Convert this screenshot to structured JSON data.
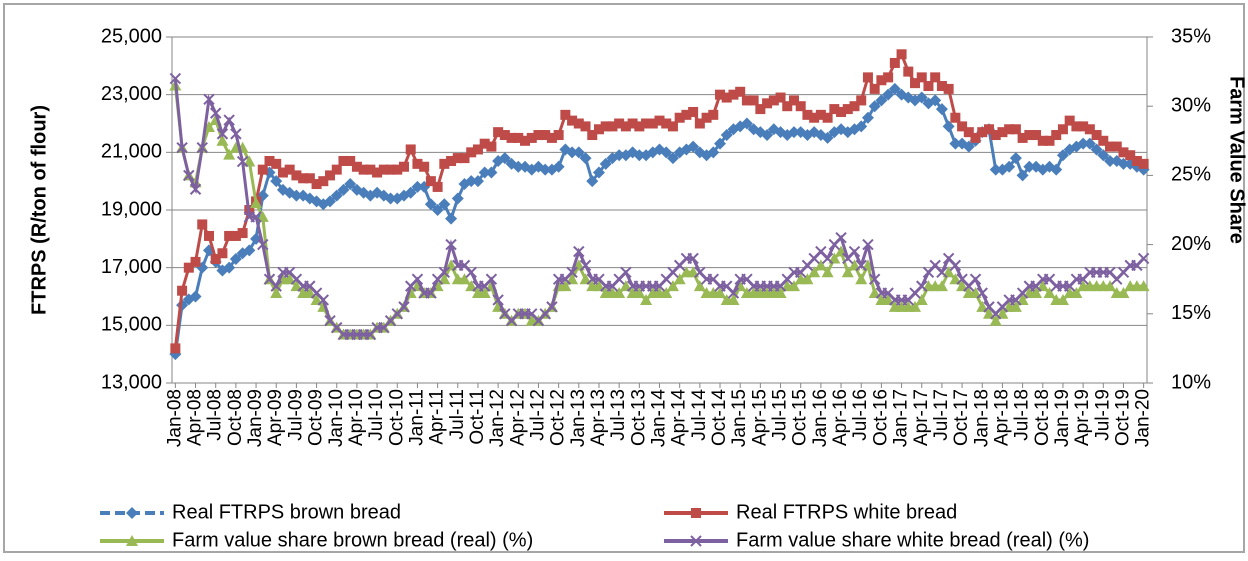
{
  "chart_data": {
    "type": "line",
    "y_label": "FTRPS (R/ton of flour)",
    "y2_label": "Farm Value Share",
    "categories": [
      "Jan-08",
      null,
      null,
      "Apr-08",
      null,
      null,
      "Jul-08",
      null,
      null,
      "Oct-08",
      null,
      null,
      "Jan-09",
      null,
      null,
      "Apr-09",
      null,
      null,
      "Jul-09",
      null,
      null,
      "Oct-09",
      null,
      null,
      "Jan-10",
      null,
      null,
      "Apr-10",
      null,
      null,
      "Jul-10",
      null,
      null,
      "Oct-10",
      null,
      null,
      "Jan-11",
      null,
      null,
      "Apr-11",
      null,
      null,
      "Jul-11",
      null,
      null,
      "Oct-11",
      null,
      null,
      "Jan-12",
      null,
      null,
      "Apr-12",
      null,
      null,
      "Jul-12",
      null,
      null,
      "Oct-12",
      null,
      null,
      "Jan-13",
      null,
      null,
      "Apr-13",
      null,
      null,
      "Jul-13",
      null,
      null,
      "Oct-13",
      null,
      null,
      "Jan-14",
      null,
      null,
      "Apr-14",
      null,
      null,
      "Jul-14",
      null,
      null,
      "Oct-14",
      null,
      null,
      "Jan-15",
      null,
      null,
      "Apr-15",
      null,
      null,
      "Jul-15",
      null,
      null,
      "Oct-15",
      null,
      null,
      "Jan-16",
      null,
      null,
      "Apr-16",
      null,
      null,
      "Jul-16",
      null,
      null,
      "Oct-16",
      null,
      null,
      "Jan-17",
      null,
      null,
      "Apr-17",
      null,
      null,
      "Jul-17",
      null,
      null,
      "Oct-17",
      null,
      null,
      "Jan-18",
      null,
      null,
      "Apr-18",
      null,
      null,
      "Jul-18",
      null,
      null,
      "Oct-18",
      null,
      null,
      "Jan-19",
      null,
      null,
      "Apr-19",
      null,
      null,
      "Jul-19",
      null,
      null,
      "Oct-19",
      null,
      null,
      "Jan-20"
    ],
    "ylim": [
      13000,
      25000
    ],
    "yticks": [
      {
        "value": 13000,
        "label": "13,000"
      },
      {
        "value": 15000,
        "label": "15,000"
      },
      {
        "value": 17000,
        "label": "17,000"
      },
      {
        "value": 19000,
        "label": "19,000"
      },
      {
        "value": 21000,
        "label": "21,000"
      },
      {
        "value": 23000,
        "label": "23,000"
      },
      {
        "value": 25000,
        "label": "25,000"
      }
    ],
    "y2lim": [
      10,
      35
    ],
    "y2ticks": [
      {
        "value": 10,
        "label": "10%"
      },
      {
        "value": 15,
        "label": "15%"
      },
      {
        "value": 20,
        "label": "20%"
      },
      {
        "value": 25,
        "label": "25%"
      },
      {
        "value": 30,
        "label": "30%"
      },
      {
        "value": 35,
        "label": "35%"
      }
    ],
    "grid": true,
    "legend": "bottom",
    "series": [
      {
        "name": "Real FTRPS brown bread",
        "color": "#4a7ebb",
        "marker": "diamond",
        "line_style": "dashed",
        "values": [
          14000,
          15700,
          15900,
          16000,
          17000,
          17600,
          17200,
          16900,
          17000,
          17300,
          17500,
          17600,
          18000,
          19500,
          20300,
          20000,
          19700,
          19600,
          19500,
          19500,
          19400,
          19300,
          19200,
          19300,
          19500,
          19700,
          19900,
          19700,
          19600,
          19500,
          19600,
          19500,
          19400,
          19400,
          19500,
          19600,
          19800,
          19800,
          19200,
          19000,
          19200,
          18700,
          19400,
          19900,
          20000,
          20000,
          20300,
          20300,
          20700,
          20800,
          20600,
          20500,
          20500,
          20400,
          20500,
          20400,
          20400,
          20500,
          21100,
          21000,
          21000,
          20800,
          20000,
          20300,
          20600,
          20800,
          20900,
          20900,
          21000,
          20900,
          20900,
          21000,
          21100,
          21000,
          20800,
          21000,
          21100,
          21200,
          21000,
          20900,
          21000,
          21300,
          21600,
          21800,
          21900,
          22000,
          21800,
          21700,
          21600,
          21800,
          21700,
          21600,
          21700,
          21700,
          21600,
          21700,
          21600,
          21500,
          21700,
          21800,
          21700,
          21800,
          21900,
          22200,
          22600,
          22800,
          23000,
          23200,
          23000,
          22900,
          22800,
          22900,
          22700,
          22800,
          22500,
          21900,
          21300,
          21300,
          21200,
          21400,
          21700,
          21800,
          20400,
          20400,
          20500,
          20800,
          20200,
          20500,
          20500,
          20400,
          20500,
          20400,
          20900,
          21100,
          21200,
          21300,
          21300,
          21100,
          20900,
          20700,
          20700,
          20600,
          20600,
          20500,
          20400
        ]
      },
      {
        "name": "Real FTRPS white bread",
        "color": "#be4b48",
        "marker": "square",
        "values": [
          14200,
          16200,
          17000,
          17200,
          18500,
          18100,
          17300,
          17500,
          18100,
          18100,
          18200,
          19000,
          19300,
          20400,
          20700,
          20600,
          20300,
          20400,
          20200,
          20100,
          20100,
          19900,
          20000,
          20200,
          20400,
          20700,
          20700,
          20500,
          20400,
          20400,
          20300,
          20400,
          20400,
          20400,
          20500,
          21100,
          20600,
          20500,
          20000,
          19800,
          20600,
          20700,
          20800,
          20800,
          21000,
          21100,
          21300,
          21200,
          21700,
          21600,
          21500,
          21500,
          21400,
          21500,
          21600,
          21600,
          21500,
          21600,
          22300,
          22100,
          22000,
          21900,
          21600,
          21800,
          21900,
          21900,
          22000,
          21900,
          22000,
          21900,
          22000,
          22000,
          22100,
          22000,
          21900,
          22200,
          22300,
          22400,
          22000,
          22200,
          22300,
          23000,
          22900,
          23000,
          23100,
          22800,
          22800,
          22500,
          22700,
          22800,
          22900,
          22600,
          22800,
          22600,
          22300,
          22200,
          22300,
          22200,
          22500,
          22400,
          22500,
          22600,
          22800,
          23600,
          23200,
          23500,
          23600,
          24100,
          24400,
          23800,
          23400,
          23600,
          23300,
          23600,
          23300,
          23200,
          22200,
          21900,
          21700,
          21500,
          21700,
          21800,
          21600,
          21700,
          21800,
          21800,
          21500,
          21600,
          21600,
          21400,
          21400,
          21600,
          21800,
          22100,
          21900,
          21900,
          21800,
          21600,
          21400,
          21200,
          21200,
          21000,
          20900,
          20700,
          20600
        ]
      },
      {
        "name": "Farm value share brown bread (real) (%)",
        "color": "#98b954",
        "marker": "triangle",
        "axis": "y2",
        "values": [
          31.5,
          27,
          25,
          24.5,
          27,
          28.5,
          29,
          27.5,
          26.5,
          27,
          27,
          26,
          23,
          22,
          17.5,
          16.5,
          17.5,
          17.5,
          17,
          16.5,
          16.5,
          16,
          15.5,
          14.5,
          14,
          13.5,
          13.5,
          13.5,
          13.5,
          13.5,
          14,
          14,
          14.5,
          15,
          15.5,
          16.5,
          17,
          16.5,
          16.5,
          17,
          17.5,
          18.5,
          17.5,
          17.5,
          17,
          16.5,
          16.5,
          17,
          15.5,
          15,
          14.5,
          15,
          15,
          14.5,
          14.5,
          15,
          15.5,
          17,
          17,
          17.5,
          18.5,
          17.5,
          17,
          17,
          16.5,
          16.5,
          16.5,
          17,
          16.5,
          16.5,
          16,
          16.5,
          16.5,
          16.5,
          17,
          17.5,
          18,
          18,
          17,
          16.5,
          16.5,
          16.5,
          16,
          16,
          17,
          16.5,
          16.5,
          16.5,
          16.5,
          16.5,
          16.5,
          17,
          17,
          17.5,
          17.5,
          18,
          18.5,
          18,
          19,
          19.5,
          18,
          18.5,
          17.5,
          18.5,
          16.5,
          16,
          16,
          15.5,
          15.5,
          15.5,
          15.5,
          16,
          17,
          17,
          17,
          18,
          17.5,
          17,
          16.5,
          16.5,
          15.5,
          15,
          14.5,
          15,
          15.5,
          15.5,
          16,
          16.5,
          16.5,
          17,
          16.5,
          16,
          16,
          16.5,
          16.5,
          17,
          17,
          17,
          17,
          17,
          16.5,
          16.5,
          17,
          17,
          17
        ]
      },
      {
        "name": "Farm value share white bread (real) (%)",
        "color": "#7d60a0",
        "marker": "x",
        "axis": "y2",
        "values": [
          32,
          27,
          25,
          24,
          27,
          30.5,
          29.5,
          28,
          29,
          28,
          26,
          22,
          22,
          20,
          17.5,
          17,
          18,
          18,
          17.5,
          17,
          17,
          16.5,
          16,
          14.5,
          14,
          13.5,
          13.5,
          13.5,
          13.5,
          13.5,
          14,
          14,
          14.5,
          15,
          15.5,
          17,
          17.5,
          16.5,
          16.5,
          17.5,
          18,
          20,
          18.5,
          18.5,
          18,
          17,
          17,
          17.5,
          16,
          15,
          14.5,
          15,
          15,
          15,
          14.5,
          15,
          15.5,
          17.5,
          17.5,
          18,
          19.5,
          18.5,
          17.5,
          17.5,
          17,
          17,
          17.5,
          18,
          17,
          17,
          17,
          17,
          17,
          17.5,
          18,
          18.5,
          19,
          19,
          18,
          17.5,
          17.5,
          17,
          17,
          16.5,
          17.5,
          17.5,
          17,
          17,
          17,
          17,
          17,
          17.5,
          18,
          18,
          18.5,
          19,
          19.5,
          19,
          20,
          20.5,
          19,
          19.5,
          18.5,
          20,
          17.5,
          16.5,
          16.5,
          16,
          16,
          16,
          16.5,
          17,
          18,
          18.5,
          18,
          19,
          18.5,
          17.5,
          17,
          17.5,
          16.5,
          15.5,
          15,
          15.5,
          16,
          16,
          16.5,
          17,
          17,
          17.5,
          17.5,
          17,
          17,
          17,
          17.5,
          17.5,
          18,
          18,
          18,
          18,
          17.5,
          18,
          18.5,
          18.5,
          19
        ]
      }
    ]
  }
}
